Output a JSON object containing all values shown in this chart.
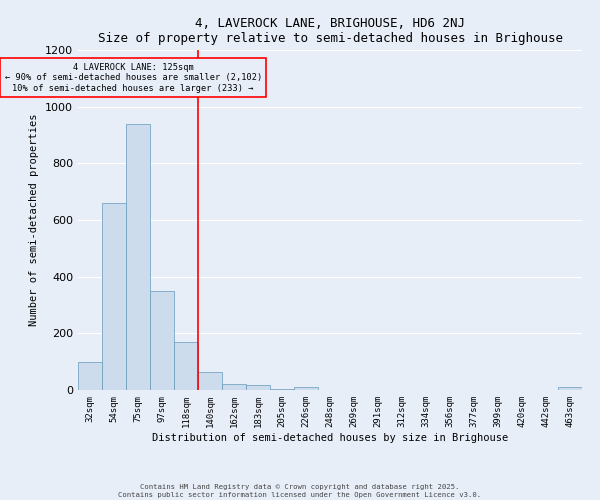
{
  "title": "4, LAVEROCK LANE, BRIGHOUSE, HD6 2NJ",
  "subtitle": "Size of property relative to semi-detached houses in Brighouse",
  "xlabel": "Distribution of semi-detached houses by size in Brighouse",
  "ylabel": "Number of semi-detached properties",
  "bin_labels": [
    "32sqm",
    "54sqm",
    "75sqm",
    "97sqm",
    "118sqm",
    "140sqm",
    "162sqm",
    "183sqm",
    "205sqm",
    "226sqm",
    "248sqm",
    "269sqm",
    "291sqm",
    "312sqm",
    "334sqm",
    "356sqm",
    "377sqm",
    "399sqm",
    "420sqm",
    "442sqm",
    "463sqm"
  ],
  "bin_values": [
    100,
    660,
    940,
    350,
    170,
    65,
    22,
    17,
    5,
    12,
    0,
    0,
    0,
    0,
    0,
    0,
    0,
    0,
    0,
    0,
    10
  ],
  "bar_color": "#ccdcec",
  "bar_edge_color": "#6699bb",
  "vline_x": 4.5,
  "vline_color": "red",
  "annotation_title": "4 LAVEROCK LANE: 125sqm",
  "annotation_line1": "← 90% of semi-detached houses are smaller (2,102)",
  "annotation_line2": "10% of semi-detached houses are larger (233) →",
  "annotation_box_color": "red",
  "background_color": "#e8eef8",
  "grid_color": "white",
  "ylim": [
    0,
    1200
  ],
  "yticks": [
    0,
    200,
    400,
    600,
    800,
    1000,
    1200
  ],
  "footer1": "Contains HM Land Registry data © Crown copyright and database right 2025.",
  "footer2": "Contains public sector information licensed under the Open Government Licence v3.0."
}
